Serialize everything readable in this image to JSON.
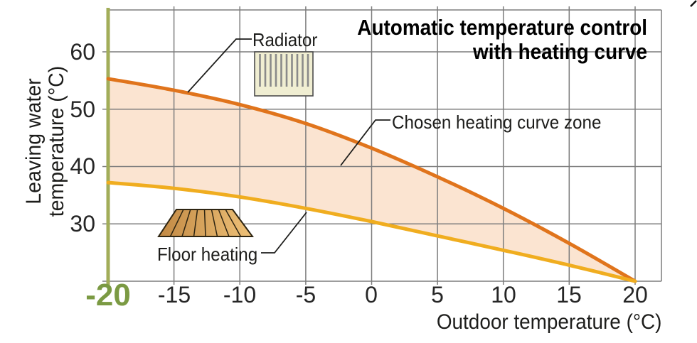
{
  "chart_title": {
    "line1": "Automatic temperature control",
    "line2": "with heating curve"
  },
  "y_axis": {
    "title_line1": "Leaving water",
    "title_line2": "temperature (°C)",
    "ticks": [
      "60",
      "50",
      "40",
      "30"
    ]
  },
  "x_axis": {
    "title": "Outdoor temperature (°C)",
    "highlight_tick": "-20",
    "ticks": [
      "-15",
      "-10",
      "-5",
      "0",
      "5",
      "10",
      "15",
      "20"
    ]
  },
  "annotations": {
    "radiator_label": "Radiator",
    "zone_label": "Chosen heating curve zone",
    "floor_label": "Floor heating"
  },
  "icons": {
    "radiator": "radiator-icon",
    "floor_heating": "floor-heating-icon"
  },
  "colors": {
    "radiator_curve": "#e0741c",
    "floor_curve": "#f0ad1f",
    "zone_fill": "#fbe4d1",
    "outdoor_axis_line": "#a2ad59",
    "highlight_tick_text": "#7b9a43",
    "grid": "#7d7d7d",
    "text": "#1d1d1b"
  },
  "chart_data": {
    "type": "area",
    "title": "Automatic temperature control with heating curve",
    "xlabel": "Outdoor temperature (°C)",
    "ylabel": "Leaving water temperature (°C)",
    "x": [
      -20,
      -15,
      -10,
      -5,
      0,
      5,
      10,
      15,
      20
    ],
    "series": [
      {
        "name": "Radiator",
        "values": [
          55.3,
          53.3,
          50.8,
          47.5,
          43.2,
          38.2,
          32.7,
          26.6,
          20
        ]
      },
      {
        "name": "Floor heating",
        "values": [
          37.2,
          36.2,
          34.7,
          32.7,
          30.4,
          27.9,
          25.4,
          22.8,
          20
        ]
      }
    ],
    "zone_between_series_label": "Chosen heating curve zone",
    "xlim": [
      -20,
      22
    ],
    "ylim": [
      20,
      67.3
    ],
    "grid": true,
    "x_highlight": -20,
    "legend_position": "none"
  }
}
